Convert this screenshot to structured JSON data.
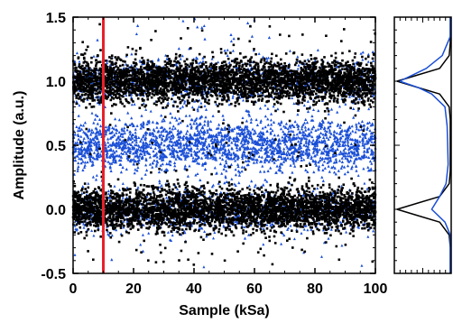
{
  "chart_data": [
    {
      "type": "scatter",
      "title": "",
      "xlabel": "Sample (kSa)",
      "ylabel": "Amplitude (a.u.)",
      "xlim": [
        0,
        100
      ],
      "ylim": [
        -0.5,
        1.5
      ],
      "x_ticks": [
        "0",
        "20",
        "40",
        "60",
        "80",
        "100"
      ],
      "y_ticks": [
        "-0.5",
        "0.0",
        "0.5",
        "1.0",
        "1.5"
      ],
      "grid": false,
      "series": [
        {
          "color": "#000000",
          "marker": "dot",
          "bands": [
            {
              "center": 1.0,
              "spread": 0.08
            },
            {
              "center": 0.0,
              "spread": 0.08
            }
          ],
          "outlier_range": [
            -0.45,
            1.45
          ]
        },
        {
          "color": "#1a4fd6",
          "marker": "triangle",
          "bands": [
            {
              "center": 1.0,
              "spread": 0.09
            },
            {
              "center": 0.5,
              "spread": 0.1
            },
            {
              "center": 0.0,
              "spread": 0.09
            }
          ],
          "outlier_range": [
            -0.45,
            1.5
          ]
        }
      ],
      "vertical_line": {
        "x": 10,
        "color": "#e8202a"
      }
    },
    {
      "type": "line",
      "orientation": "horizontal-histogram",
      "ylim": [
        -0.5,
        1.5
      ],
      "series": [
        {
          "color": "#000000",
          "y": [
            -0.5,
            -0.3,
            -0.2,
            -0.1,
            -0.05,
            0.0,
            0.05,
            0.1,
            0.2,
            0.3,
            0.5,
            0.7,
            0.8,
            0.9,
            0.95,
            1.0,
            1.05,
            1.1,
            1.2,
            1.3,
            1.5
          ],
          "density": [
            0.0,
            0.0,
            0.02,
            0.2,
            0.6,
            1.0,
            0.6,
            0.2,
            0.02,
            0.0,
            0.0,
            0.0,
            0.02,
            0.2,
            0.6,
            1.0,
            0.6,
            0.2,
            0.02,
            0.0,
            0.0
          ]
        },
        {
          "color": "#1a4fd6",
          "y": [
            -0.5,
            -0.2,
            -0.1,
            0.0,
            0.1,
            0.2,
            0.35,
            0.5,
            0.65,
            0.8,
            0.9,
            0.95,
            1.0,
            1.05,
            1.1,
            1.2,
            1.35,
            1.5
          ],
          "density": [
            0.0,
            0.0,
            0.1,
            0.35,
            0.2,
            0.08,
            0.04,
            0.05,
            0.06,
            0.1,
            0.35,
            0.6,
            0.95,
            0.7,
            0.45,
            0.15,
            0.0,
            0.0
          ]
        }
      ]
    }
  ]
}
